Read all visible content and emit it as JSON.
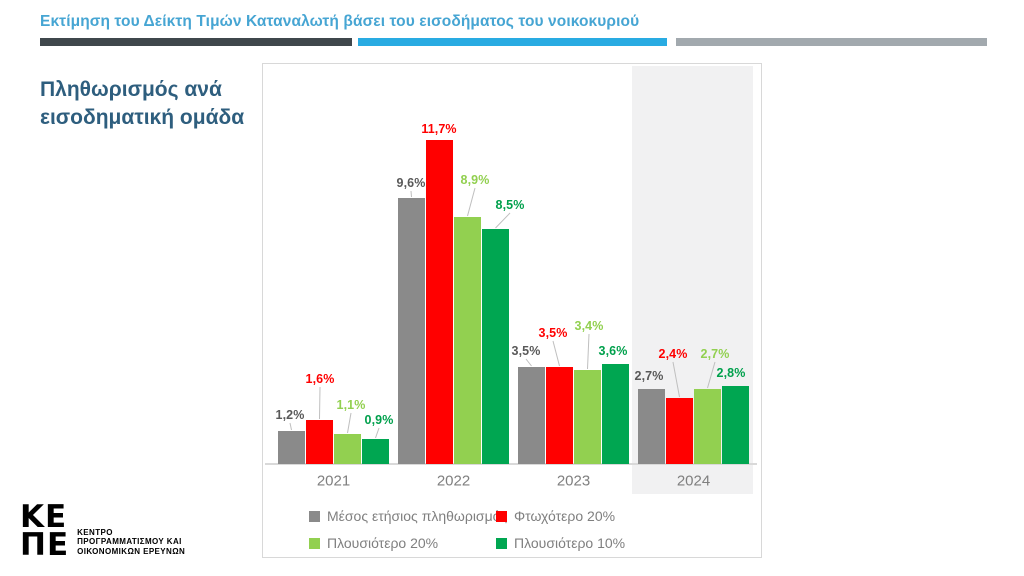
{
  "header": {
    "title": "Εκτίμηση του Δείκτη Τιμών Καταναλωτή βάσει του εισοδήματος του νοικοκυριού",
    "accent_colors": {
      "dark": "#3F474C",
      "blue": "#29ABE2",
      "gray": "#A2A9AE"
    }
  },
  "side_title": "Πληθωρισμός ανά εισοδηματική ομάδα",
  "chart_data": {
    "type": "bar",
    "title": "Πληθωρισμός ανά εισοδηματική ομάδα",
    "categories": [
      "2021",
      "2022",
      "2023",
      "2024"
    ],
    "series": [
      {
        "name": "Μέσος ετήσιος πληθωρισμός",
        "color": "#8A8A8A",
        "label_color": "#595959",
        "values": [
          1.2,
          9.6,
          3.5,
          2.7
        ],
        "labels": [
          "1,2%",
          "9,6%",
          "3,5%",
          "2,7%"
        ]
      },
      {
        "name": "Φτωχότερο 20%",
        "color": "#FF0000",
        "label_color": "#FF0000",
        "values": [
          1.6,
          11.7,
          3.5,
          2.4
        ],
        "labels": [
          "1,6%",
          "11,7%",
          "3,5%",
          "2,4%"
        ]
      },
      {
        "name": "Πλουσιότερο 20%",
        "color": "#92D050",
        "label_color": "#92D050",
        "values": [
          1.1,
          8.9,
          3.4,
          2.7
        ],
        "labels": [
          "1,1%",
          "8,9%",
          "3,4%",
          "2,7%"
        ]
      },
      {
        "name": "Πλουσιότερο 10%",
        "color": "#00A651",
        "label_color": "#00A04C",
        "values": [
          0.9,
          8.5,
          3.6,
          2.8
        ],
        "labels": [
          "0,9%",
          "8,5%",
          "3,6%",
          "2,8%"
        ]
      }
    ],
    "unit": "%",
    "ylim": [
      0,
      12
    ],
    "gridlines": false,
    "legend_position": "bottom",
    "highlighted_category": "2024",
    "highlight_color": "#F1F1F2",
    "leader_line_color": "#BFBFBF"
  },
  "footer_logo": {
    "mark_top": "ΚΕ",
    "mark_bottom": "ΠΕ",
    "org_lines": [
      "ΚΕΝΤΡΟ",
      "ΠΡΟΓΡΑΜΜΑΤΙΣΜΟΥ ΚΑΙ",
      "ΟΙΚΟΝΟΜΙΚΩΝ ΕΡΕΥΝΩΝ"
    ]
  }
}
